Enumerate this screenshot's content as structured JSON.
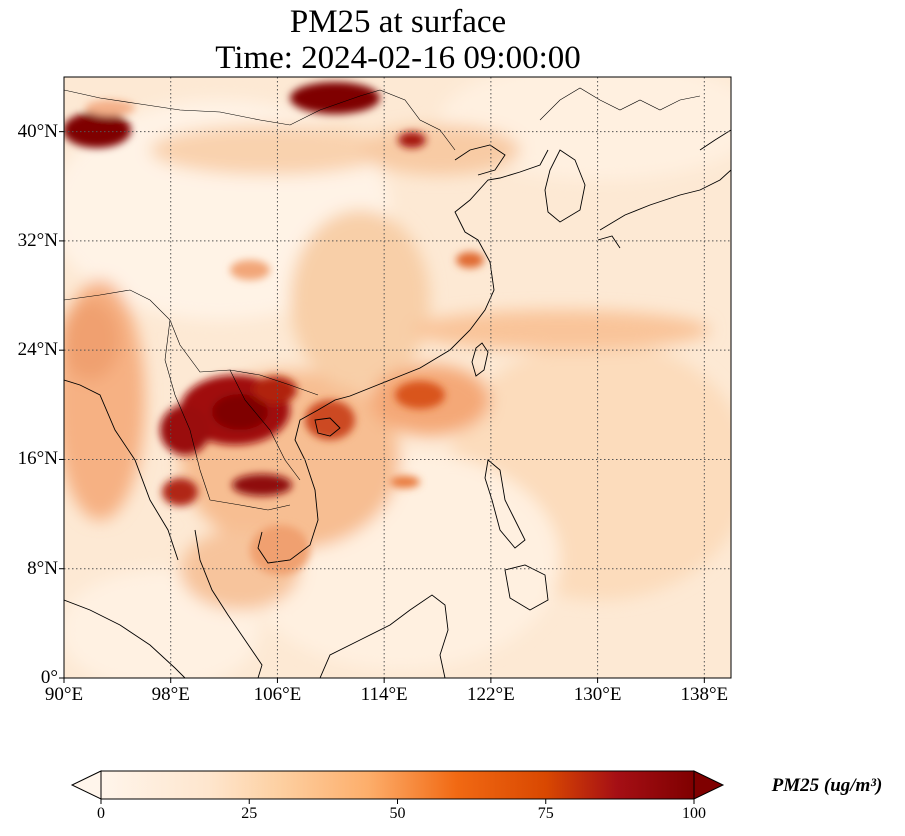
{
  "figure": {
    "title_line1": "PM25 at surface",
    "title_line2": "Time: 2024-02-16 09:00:00"
  },
  "map": {
    "lon_range": [
      90,
      140
    ],
    "lat_range": [
      0,
      44
    ],
    "lat_ticks": [
      {
        "value": 0,
        "label": "0°"
      },
      {
        "value": 8,
        "label": "8°N"
      },
      {
        "value": 16,
        "label": "16°N"
      },
      {
        "value": 24,
        "label": "24°N"
      },
      {
        "value": 32,
        "label": "32°N"
      },
      {
        "value": 40,
        "label": "40°N"
      }
    ],
    "lon_ticks": [
      {
        "value": 90,
        "label": "90°E"
      },
      {
        "value": 98,
        "label": "98°E"
      },
      {
        "value": 106,
        "label": "106°E"
      },
      {
        "value": 114,
        "label": "114°E"
      },
      {
        "value": 122,
        "label": "122°E"
      },
      {
        "value": 130,
        "label": "130°E"
      },
      {
        "value": 138,
        "label": "138°E"
      }
    ],
    "gridlines": true,
    "field": "PM25",
    "hotspots": [
      {
        "name": "Taklimakan / west",
        "lon": 92.5,
        "lat": 40.9,
        "value": 100
      },
      {
        "name": "Inner Mongolia",
        "lon": 110.5,
        "lat": 43.4,
        "value": 100
      },
      {
        "name": "Hebei",
        "lon": 116.5,
        "lat": 40.2,
        "value": 80
      },
      {
        "name": "Northern Laos",
        "lon": 103.5,
        "lat": 19.5,
        "value": 100
      },
      {
        "name": "Northern Thailand",
        "lon": 100,
        "lat": 19,
        "value": 95
      },
      {
        "name": "Cambodia",
        "lon": 105.5,
        "lat": 14.5,
        "value": 95
      },
      {
        "name": "Myanmar south",
        "lon": 98.5,
        "lat": 14.5,
        "value": 85
      },
      {
        "name": "Gulf of Tonkin",
        "lon": 107.5,
        "lat": 21.2,
        "value": 85
      },
      {
        "name": "South China coast",
        "lon": 116.5,
        "lat": 21,
        "value": 75
      }
    ]
  },
  "colorbar": {
    "label": "PM25 (ug/m³)",
    "min": 0,
    "max": 100,
    "extend": "both",
    "colormap": [
      "#fff5eb",
      "#fdd9b4",
      "#fda762",
      "#f3701b",
      "#c54102",
      "#800026",
      "#7f0000"
    ],
    "ticks": [
      {
        "value": 0,
        "label": "0"
      },
      {
        "value": 25,
        "label": "25"
      },
      {
        "value": 50,
        "label": "50"
      },
      {
        "value": 75,
        "label": "75"
      },
      {
        "value": 100,
        "label": "100"
      }
    ]
  }
}
